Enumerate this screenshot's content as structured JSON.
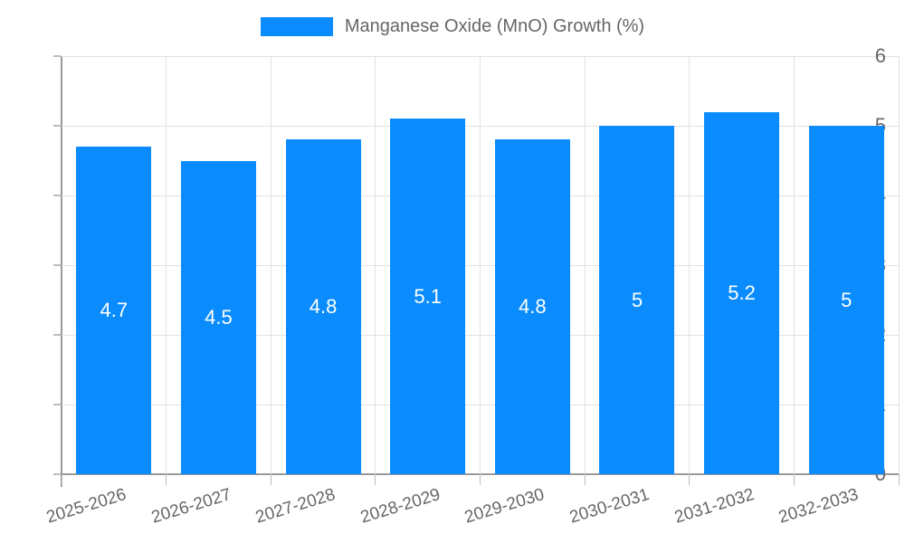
{
  "chart_data": {
    "type": "bar",
    "title": "",
    "legend": "Manganese Oxide (MnO) Growth (%)",
    "legend_position": "top",
    "categories": [
      "2025-2026",
      "2026-2027",
      "2027-2028",
      "2028-2029",
      "2029-2030",
      "2030-2031",
      "2031-2032",
      "2032-2033"
    ],
    "values": [
      4.7,
      4.5,
      4.8,
      5.1,
      4.8,
      5,
      5.2,
      5
    ],
    "bar_labels": [
      "4.7",
      "4.5",
      "4.8",
      "5.1",
      "4.8",
      "5",
      "5.2",
      "5"
    ],
    "xlabel": "",
    "ylabel": "",
    "ylim": [
      0,
      6
    ],
    "yticks": [
      0,
      1,
      2,
      3,
      4,
      5,
      6
    ],
    "grid": true,
    "colors": {
      "bar": "#0a8cfe",
      "grid": "#e2e2e2",
      "axis": "#9a9a9a",
      "tick_text": "#666666",
      "legend_text": "#666666",
      "bar_label_text": "#ffffff"
    }
  }
}
